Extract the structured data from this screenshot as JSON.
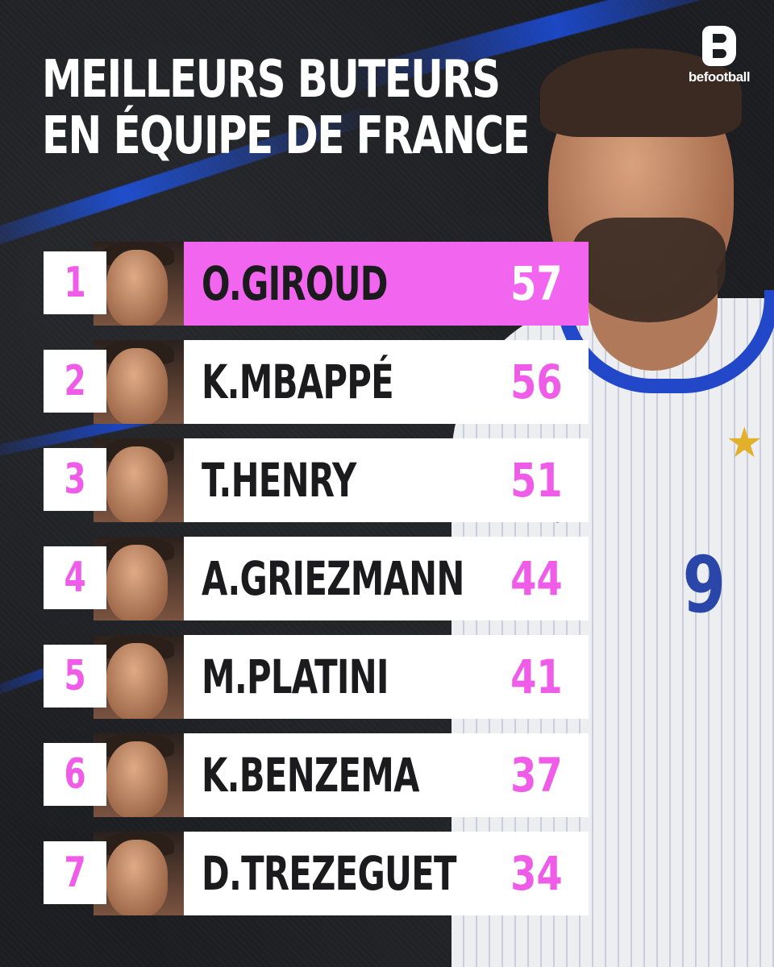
{
  "title": {
    "line1": "MEILLEURS BUTEURS",
    "line2": "EN ÉQUIPE DE FRANCE"
  },
  "brand": {
    "logo_text": "befootball"
  },
  "hero": {
    "jersey_number": "9"
  },
  "colors": {
    "accent_pink": "#f266ef",
    "rank_pink": "#ef5ce8",
    "background": "#1c1d21",
    "streak_blue": "#1f55e8"
  },
  "rankings": [
    {
      "rank": "1",
      "name": "O.GIROUD",
      "goals": "57"
    },
    {
      "rank": "2",
      "name": "K.MBAPPÉ",
      "goals": "56"
    },
    {
      "rank": "3",
      "name": "T.HENRY",
      "goals": "51"
    },
    {
      "rank": "4",
      "name": "A.GRIEZMANN",
      "goals": "44"
    },
    {
      "rank": "5",
      "name": "M.PLATINI",
      "goals": "41"
    },
    {
      "rank": "6",
      "name": "K.BENZEMA",
      "goals": "37"
    },
    {
      "rank": "7",
      "name": "D.TREZEGUET",
      "goals": "34"
    }
  ]
}
